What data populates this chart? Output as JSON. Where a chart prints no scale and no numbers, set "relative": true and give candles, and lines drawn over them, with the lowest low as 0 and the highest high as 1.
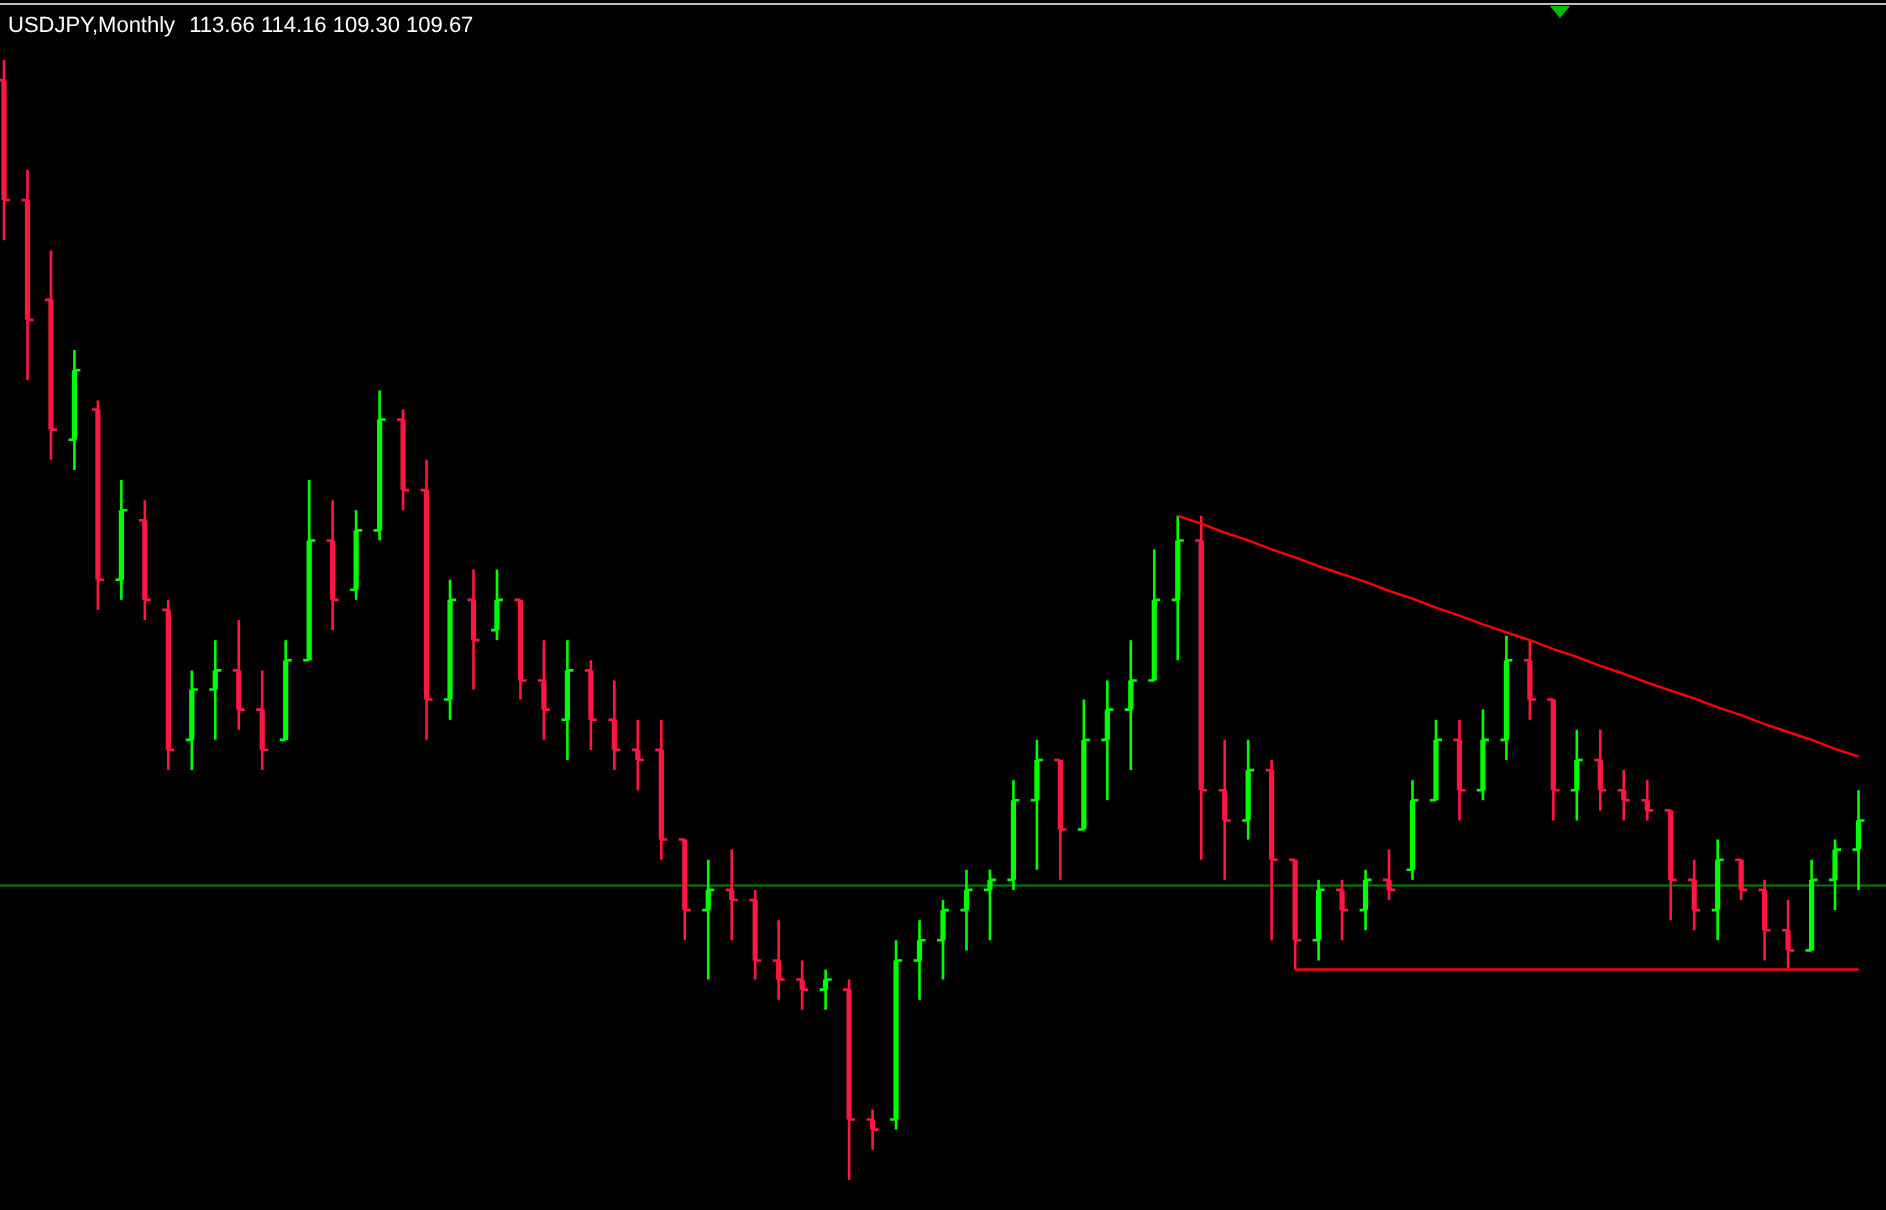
{
  "chart_data": {
    "type": "candlestick",
    "title": "USDJPY,Monthly",
    "subtitle": "113.66 114.16 109.30 109.67",
    "relative": true,
    "categories": [
      null,
      null,
      null,
      null,
      null,
      null,
      null,
      null,
      null,
      null,
      null,
      null,
      null,
      null,
      null,
      null,
      null,
      null,
      null,
      null,
      null,
      null,
      null,
      null,
      null,
      null,
      null,
      null,
      null,
      null,
      null,
      null,
      null,
      null,
      null,
      null,
      null,
      null,
      null,
      null,
      null,
      null,
      null,
      null,
      null,
      null,
      null,
      null,
      null,
      null,
      null,
      null,
      null,
      null,
      null,
      null,
      null,
      null,
      null,
      null,
      null,
      null,
      null,
      null,
      null,
      null,
      null,
      null,
      null,
      null,
      null,
      null,
      null,
      null,
      null,
      null,
      null,
      null,
      null,
      null
    ],
    "ohlc": [
      [
        0.982,
        1.0,
        0.839,
        0.875
      ],
      [
        0.875,
        0.902,
        0.714,
        0.768
      ],
      [
        0.786,
        0.83,
        0.643,
        0.67
      ],
      [
        0.661,
        0.741,
        0.634,
        0.723
      ],
      [
        0.688,
        0.696,
        0.509,
        0.536
      ],
      [
        0.536,
        0.625,
        0.518,
        0.598
      ],
      [
        0.589,
        0.607,
        0.5,
        0.518
      ],
      [
        0.509,
        0.518,
        0.366,
        0.384
      ],
      [
        0.393,
        0.455,
        0.366,
        0.438
      ],
      [
        0.438,
        0.482,
        0.393,
        0.455
      ],
      [
        0.455,
        0.5,
        0.402,
        0.42
      ],
      [
        0.42,
        0.455,
        0.366,
        0.384
      ],
      [
        0.393,
        0.482,
        0.393,
        0.464
      ],
      [
        0.464,
        0.625,
        0.464,
        0.571
      ],
      [
        0.571,
        0.607,
        0.491,
        0.518
      ],
      [
        0.527,
        0.598,
        0.518,
        0.58
      ],
      [
        0.58,
        0.705,
        0.571,
        0.679
      ],
      [
        0.679,
        0.688,
        0.598,
        0.616
      ],
      [
        0.616,
        0.643,
        0.393,
        0.429
      ],
      [
        0.429,
        0.536,
        0.411,
        0.518
      ],
      [
        0.518,
        0.545,
        0.438,
        0.482
      ],
      [
        0.491,
        0.545,
        0.482,
        0.518
      ],
      [
        0.518,
        0.518,
        0.429,
        0.446
      ],
      [
        0.446,
        0.482,
        0.393,
        0.42
      ],
      [
        0.411,
        0.482,
        0.375,
        0.455
      ],
      [
        0.455,
        0.464,
        0.384,
        0.411
      ],
      [
        0.411,
        0.446,
        0.366,
        0.384
      ],
      [
        0.384,
        0.411,
        0.348,
        0.375
      ],
      [
        0.384,
        0.411,
        0.286,
        0.304
      ],
      [
        0.304,
        0.304,
        0.214,
        0.241
      ],
      [
        0.241,
        0.286,
        0.179,
        0.259
      ],
      [
        0.259,
        0.295,
        0.214,
        0.25
      ],
      [
        0.25,
        0.259,
        0.179,
        0.196
      ],
      [
        0.196,
        0.232,
        0.161,
        0.179
      ],
      [
        0.179,
        0.196,
        0.152,
        0.17
      ],
      [
        0.17,
        0.188,
        0.152,
        0.179
      ],
      [
        0.17,
        0.179,
        0.0,
        0.054
      ],
      [
        0.054,
        0.063,
        0.027,
        0.045
      ],
      [
        0.054,
        0.214,
        0.045,
        0.196
      ],
      [
        0.196,
        0.232,
        0.161,
        0.214
      ],
      [
        0.214,
        0.25,
        0.179,
        0.241
      ],
      [
        0.241,
        0.277,
        0.205,
        0.259
      ],
      [
        0.259,
        0.277,
        0.214,
        0.268
      ],
      [
        0.268,
        0.357,
        0.259,
        0.339
      ],
      [
        0.339,
        0.393,
        0.277,
        0.375
      ],
      [
        0.375,
        0.375,
        0.268,
        0.313
      ],
      [
        0.313,
        0.429,
        0.313,
        0.393
      ],
      [
        0.393,
        0.446,
        0.339,
        0.42
      ],
      [
        0.42,
        0.482,
        0.366,
        0.446
      ],
      [
        0.446,
        0.563,
        0.446,
        0.518
      ],
      [
        0.518,
        0.593,
        0.464,
        0.571
      ],
      [
        0.571,
        0.593,
        0.286,
        0.348
      ],
      [
        0.348,
        0.393,
        0.268,
        0.321
      ],
      [
        0.321,
        0.393,
        0.304,
        0.366
      ],
      [
        0.366,
        0.375,
        0.214,
        0.286
      ],
      [
        0.286,
        0.286,
        0.188,
        0.214
      ],
      [
        0.214,
        0.268,
        0.196,
        0.259
      ],
      [
        0.259,
        0.268,
        0.214,
        0.241
      ],
      [
        0.241,
        0.277,
        0.223,
        0.268
      ],
      [
        0.268,
        0.295,
        0.25,
        0.259
      ],
      [
        0.277,
        0.357,
        0.268,
        0.339
      ],
      [
        0.339,
        0.411,
        0.339,
        0.393
      ],
      [
        0.393,
        0.411,
        0.321,
        0.348
      ],
      [
        0.348,
        0.42,
        0.339,
        0.393
      ],
      [
        0.393,
        0.486,
        0.375,
        0.464
      ],
      [
        0.464,
        0.482,
        0.411,
        0.429
      ],
      [
        0.429,
        0.429,
        0.321,
        0.348
      ],
      [
        0.348,
        0.402,
        0.321,
        0.375
      ],
      [
        0.375,
        0.402,
        0.33,
        0.348
      ],
      [
        0.348,
        0.366,
        0.321,
        0.339
      ],
      [
        0.339,
        0.357,
        0.321,
        0.33
      ],
      [
        0.33,
        0.33,
        0.232,
        0.268
      ],
      [
        0.268,
        0.286,
        0.223,
        0.241
      ],
      [
        0.241,
        0.304,
        0.214,
        0.286
      ],
      [
        0.286,
        0.286,
        0.25,
        0.259
      ],
      [
        0.259,
        0.268,
        0.196,
        0.223
      ],
      [
        0.223,
        0.25,
        0.189,
        0.205
      ],
      [
        0.205,
        0.286,
        0.205,
        0.268
      ],
      [
        0.268,
        0.304,
        0.241,
        0.295
      ],
      [
        0.295,
        0.348,
        0.259,
        0.321
      ]
    ],
    "colors": [
      "#ff1744",
      "#ff1744",
      "#ff1744",
      "#00ff00",
      "#ff1744",
      "#00ff00",
      "#ff1744",
      "#ff1744",
      "#00ff00",
      "#00ff00",
      "#ff1744",
      "#ff1744",
      "#00ff00",
      "#00ff00",
      "#ff1744",
      "#00ff00",
      "#00ff00",
      "#ff1744",
      "#ff1744",
      "#00ff00",
      "#ff1744",
      "#00ff00",
      "#ff1744",
      "#ff1744",
      "#00ff00",
      "#ff1744",
      "#ff1744",
      "#ff1744",
      "#ff1744",
      "#ff1744",
      "#00ff00",
      "#ff1744",
      "#ff1744",
      "#ff1744",
      "#ff1744",
      "#00ff00",
      "#ff1744",
      "#ff1744",
      "#00ff00",
      "#00ff00",
      "#00ff00",
      "#00ff00",
      "#00ff00",
      "#00ff00",
      "#00ff00",
      "#ff1744",
      "#00ff00",
      "#00ff00",
      "#00ff00",
      "#00ff00",
      "#00ff00",
      "#ff1744",
      "#ff1744",
      "#00ff00",
      "#ff1744",
      "#ff1744",
      "#00ff00",
      "#ff1744",
      "#00ff00",
      "#ff1744",
      "#00ff00",
      "#00ff00",
      "#ff1744",
      "#00ff00",
      "#00ff00",
      "#ff1744",
      "#ff1744",
      "#00ff00",
      "#ff1744",
      "#ff1744",
      "#ff1744",
      "#ff1744",
      "#ff1744",
      "#00ff00",
      "#ff1744",
      "#ff1744",
      "#ff1744",
      "#00ff00",
      "#00ff00",
      "#00ff00"
    ],
    "series": [
      {
        "type": "line",
        "color": "#ff0000",
        "values": [
          null,
          null,
          null,
          null,
          null,
          null,
          null,
          null,
          null,
          null,
          null,
          null,
          null,
          null,
          null,
          null,
          null,
          null,
          null,
          null,
          null,
          null,
          null,
          null,
          null,
          null,
          null,
          null,
          null,
          null,
          null,
          null,
          null,
          null,
          null,
          null,
          null,
          null,
          null,
          null,
          null,
          null,
          null,
          null,
          null,
          null,
          null,
          null,
          null,
          null,
          0.593,
          0.586,
          0.578,
          0.571,
          0.563,
          0.556,
          0.548,
          0.541,
          0.534,
          0.526,
          0.519,
          0.511,
          0.504,
          0.496,
          0.489,
          0.482,
          0.474,
          0.467,
          0.459,
          0.452,
          0.444,
          0.437,
          0.43,
          0.422,
          0.415,
          0.407,
          0.4,
          0.393,
          0.385,
          0.378
        ]
      },
      {
        "type": "line",
        "color": "#ff0000",
        "values": [
          null,
          null,
          null,
          null,
          null,
          null,
          null,
          null,
          null,
          null,
          null,
          null,
          null,
          null,
          null,
          null,
          null,
          null,
          null,
          null,
          null,
          null,
          null,
          null,
          null,
          null,
          null,
          null,
          null,
          null,
          null,
          null,
          null,
          null,
          null,
          null,
          null,
          null,
          null,
          null,
          null,
          null,
          null,
          null,
          null,
          null,
          null,
          null,
          null,
          null,
          null,
          null,
          null,
          null,
          null,
          0.188,
          0.188,
          0.188,
          0.188,
          0.188,
          0.188,
          0.188,
          0.188,
          0.188,
          0.188,
          0.188,
          0.188,
          0.188,
          0.188,
          0.188,
          0.188,
          0.188,
          0.188,
          0.188,
          0.188,
          0.188,
          0.188,
          0.188,
          0.188,
          0.188
        ]
      }
    ],
    "ref_lines": [
      {
        "axis": "y",
        "value": 0.263,
        "color": "#008000"
      }
    ]
  }
}
